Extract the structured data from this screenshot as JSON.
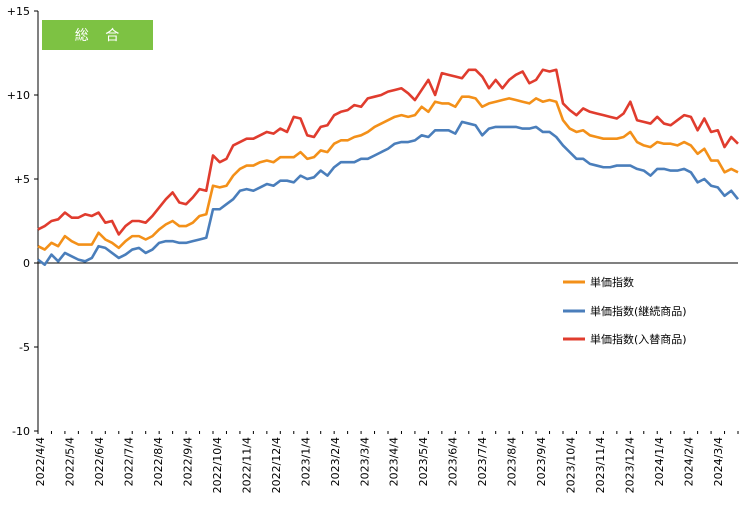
{
  "chart_data": {
    "type": "line",
    "badge": "総 合",
    "xlabel": "",
    "ylabel": "",
    "ylim": [
      -10,
      15
    ],
    "y_ticks": [
      15,
      10,
      5,
      0,
      -5,
      -10
    ],
    "y_tick_labels": [
      "+15",
      "+10",
      "+5",
      "0",
      "-5",
      "-10"
    ],
    "x_tick_labels": [
      "2022/4/4",
      "2022/5/4",
      "2022/6/4",
      "2022/7/4",
      "2022/8/4",
      "2022/9/4",
      "2022/10/4",
      "2022/11/4",
      "2022/12/4",
      "2023/1/4",
      "2023/2/4",
      "2023/3/4",
      "2023/4/4",
      "2023/5/4",
      "2023/6/4",
      "2023/7/4",
      "2023/8/4",
      "2023/9/4",
      "2023/10/4",
      "2023/11/4",
      "2023/12/4",
      "2024/1/4",
      "2024/2/4",
      "2024/3/4"
    ],
    "grid": false,
    "legend_position": "right",
    "legend": [
      "単価指数",
      "単価指数(継続商品)",
      "単価指数(入替商品)"
    ],
    "colors": {
      "orange": "#F39019",
      "blue": "#4A7EBB",
      "red": "#E03C2E",
      "badge": "#7DC243"
    },
    "x": [
      "2022/4/4",
      "2022/4/11",
      "2022/4/18",
      "2022/4/25",
      "2022/5/2",
      "2022/5/9",
      "2022/5/16",
      "2022/5/23",
      "2022/5/30",
      "2022/6/6",
      "2022/6/13",
      "2022/6/20",
      "2022/6/27",
      "2022/7/4",
      "2022/7/11",
      "2022/7/18",
      "2022/7/25",
      "2022/8/1",
      "2022/8/8",
      "2022/8/15",
      "2022/8/22",
      "2022/8/29",
      "2022/9/5",
      "2022/9/12",
      "2022/9/19",
      "2022/9/26",
      "2022/10/3",
      "2022/10/10",
      "2022/10/17",
      "2022/10/24",
      "2022/10/31",
      "2022/11/7",
      "2022/11/14",
      "2022/11/21",
      "2022/11/28",
      "2022/12/5",
      "2022/12/12",
      "2022/12/19",
      "2022/12/26",
      "2023/1/2",
      "2023/1/9",
      "2023/1/16",
      "2023/1/23",
      "2023/1/30",
      "2023/2/6",
      "2023/2/13",
      "2023/2/20",
      "2023/2/27",
      "2023/3/6",
      "2023/3/13",
      "2023/3/20",
      "2023/3/27",
      "2023/4/3",
      "2023/4/10",
      "2023/4/17",
      "2023/4/24",
      "2023/5/1",
      "2023/5/8",
      "2023/5/15",
      "2023/5/22",
      "2023/5/29",
      "2023/6/5",
      "2023/6/12",
      "2023/6/19",
      "2023/6/26",
      "2023/7/3",
      "2023/7/10",
      "2023/7/17",
      "2023/7/24",
      "2023/7/31",
      "2023/8/7",
      "2023/8/14",
      "2023/8/21",
      "2023/8/28",
      "2023/9/4",
      "2023/9/11",
      "2023/9/18",
      "2023/9/25",
      "2023/10/2",
      "2023/10/9",
      "2023/10/16",
      "2023/10/23",
      "2023/10/30",
      "2023/11/6",
      "2023/11/13",
      "2023/11/20",
      "2023/11/27",
      "2023/12/4",
      "2023/12/11",
      "2023/12/18",
      "2023/12/25",
      "2024/1/1",
      "2024/1/8",
      "2024/1/15",
      "2024/1/22",
      "2024/1/29",
      "2024/2/5",
      "2024/2/12",
      "2024/2/19",
      "2024/2/26",
      "2024/3/4",
      "2024/3/11",
      "2024/3/18",
      "2024/3/25",
      "2024/4/1"
    ],
    "series": [
      {
        "name": "単価指数",
        "color": "#F39019",
        "values": [
          1.0,
          0.8,
          1.2,
          1.0,
          1.6,
          1.3,
          1.1,
          1.1,
          1.1,
          1.8,
          1.4,
          1.2,
          0.9,
          1.3,
          1.6,
          1.6,
          1.4,
          1.6,
          2.0,
          2.3,
          2.5,
          2.2,
          2.2,
          2.4,
          2.8,
          2.9,
          4.6,
          4.5,
          4.6,
          5.2,
          5.6,
          5.8,
          5.8,
          6.0,
          6.1,
          6.0,
          6.3,
          6.3,
          6.3,
          6.6,
          6.2,
          6.3,
          6.7,
          6.6,
          7.1,
          7.3,
          7.3,
          7.5,
          7.6,
          7.8,
          8.1,
          8.3,
          8.5,
          8.7,
          8.8,
          8.7,
          8.8,
          9.3,
          9.0,
          9.6,
          9.5,
          9.5,
          9.3,
          9.9,
          9.9,
          9.8,
          9.3,
          9.5,
          9.6,
          9.7,
          9.8,
          9.7,
          9.6,
          9.5,
          9.8,
          9.6,
          9.7,
          9.6,
          8.5,
          8.0,
          7.8,
          7.9,
          7.6,
          7.5,
          7.4,
          7.4,
          7.4,
          7.5,
          7.8,
          7.2,
          7.0,
          6.9,
          7.2,
          7.1,
          7.1,
          7.0,
          7.2,
          7.0,
          6.5,
          6.8,
          6.1,
          6.1,
          5.4,
          5.6,
          5.4
        ]
      },
      {
        "name": "単価指数(継続商品)",
        "color": "#4A7EBB",
        "values": [
          0.2,
          -0.1,
          0.5,
          0.1,
          0.6,
          0.4,
          0.2,
          0.1,
          0.3,
          1.0,
          0.9,
          0.6,
          0.3,
          0.5,
          0.8,
          0.9,
          0.6,
          0.8,
          1.2,
          1.3,
          1.3,
          1.2,
          1.2,
          1.3,
          1.4,
          1.5,
          3.2,
          3.2,
          3.5,
          3.8,
          4.3,
          4.4,
          4.3,
          4.5,
          4.7,
          4.6,
          4.9,
          4.9,
          4.8,
          5.2,
          5.0,
          5.1,
          5.5,
          5.2,
          5.7,
          6.0,
          6.0,
          6.0,
          6.2,
          6.2,
          6.4,
          6.6,
          6.8,
          7.1,
          7.2,
          7.2,
          7.3,
          7.6,
          7.5,
          7.9,
          7.9,
          7.9,
          7.7,
          8.4,
          8.3,
          8.2,
          7.6,
          8.0,
          8.1,
          8.1,
          8.1,
          8.1,
          8.0,
          8.0,
          8.1,
          7.8,
          7.8,
          7.5,
          7.0,
          6.6,
          6.2,
          6.2,
          5.9,
          5.8,
          5.7,
          5.7,
          5.8,
          5.8,
          5.8,
          5.6,
          5.5,
          5.2,
          5.6,
          5.6,
          5.5,
          5.5,
          5.6,
          5.4,
          4.8,
          5.0,
          4.6,
          4.5,
          4.0,
          4.3,
          3.8
        ]
      },
      {
        "name": "単価指数(入替商品)",
        "color": "#E03C2E",
        "values": [
          2.0,
          2.2,
          2.5,
          2.6,
          3.0,
          2.7,
          2.7,
          2.9,
          2.8,
          3.0,
          2.4,
          2.5,
          1.7,
          2.2,
          2.5,
          2.5,
          2.4,
          2.8,
          3.3,
          3.8,
          4.2,
          3.6,
          3.5,
          3.9,
          4.4,
          4.3,
          6.4,
          6.0,
          6.2,
          7.0,
          7.2,
          7.4,
          7.4,
          7.6,
          7.8,
          7.7,
          8.0,
          7.8,
          8.7,
          8.6,
          7.6,
          7.5,
          8.1,
          8.2,
          8.8,
          9.0,
          9.1,
          9.4,
          9.3,
          9.8,
          9.9,
          10.0,
          10.2,
          10.3,
          10.4,
          10.1,
          9.7,
          10.3,
          10.9,
          10.0,
          11.3,
          11.2,
          11.1,
          11.0,
          11.5,
          11.5,
          11.1,
          10.4,
          10.9,
          10.4,
          10.9,
          11.2,
          11.4,
          10.7,
          10.9,
          11.5,
          11.4,
          11.5,
          9.5,
          9.1,
          8.8,
          9.2,
          9.0,
          8.9,
          8.8,
          8.7,
          8.6,
          8.9,
          9.6,
          8.5,
          8.4,
          8.3,
          8.7,
          8.3,
          8.2,
          8.5,
          8.8,
          8.7,
          7.9,
          8.6,
          7.8,
          7.9,
          6.9,
          7.5,
          7.1
        ]
      }
    ]
  }
}
